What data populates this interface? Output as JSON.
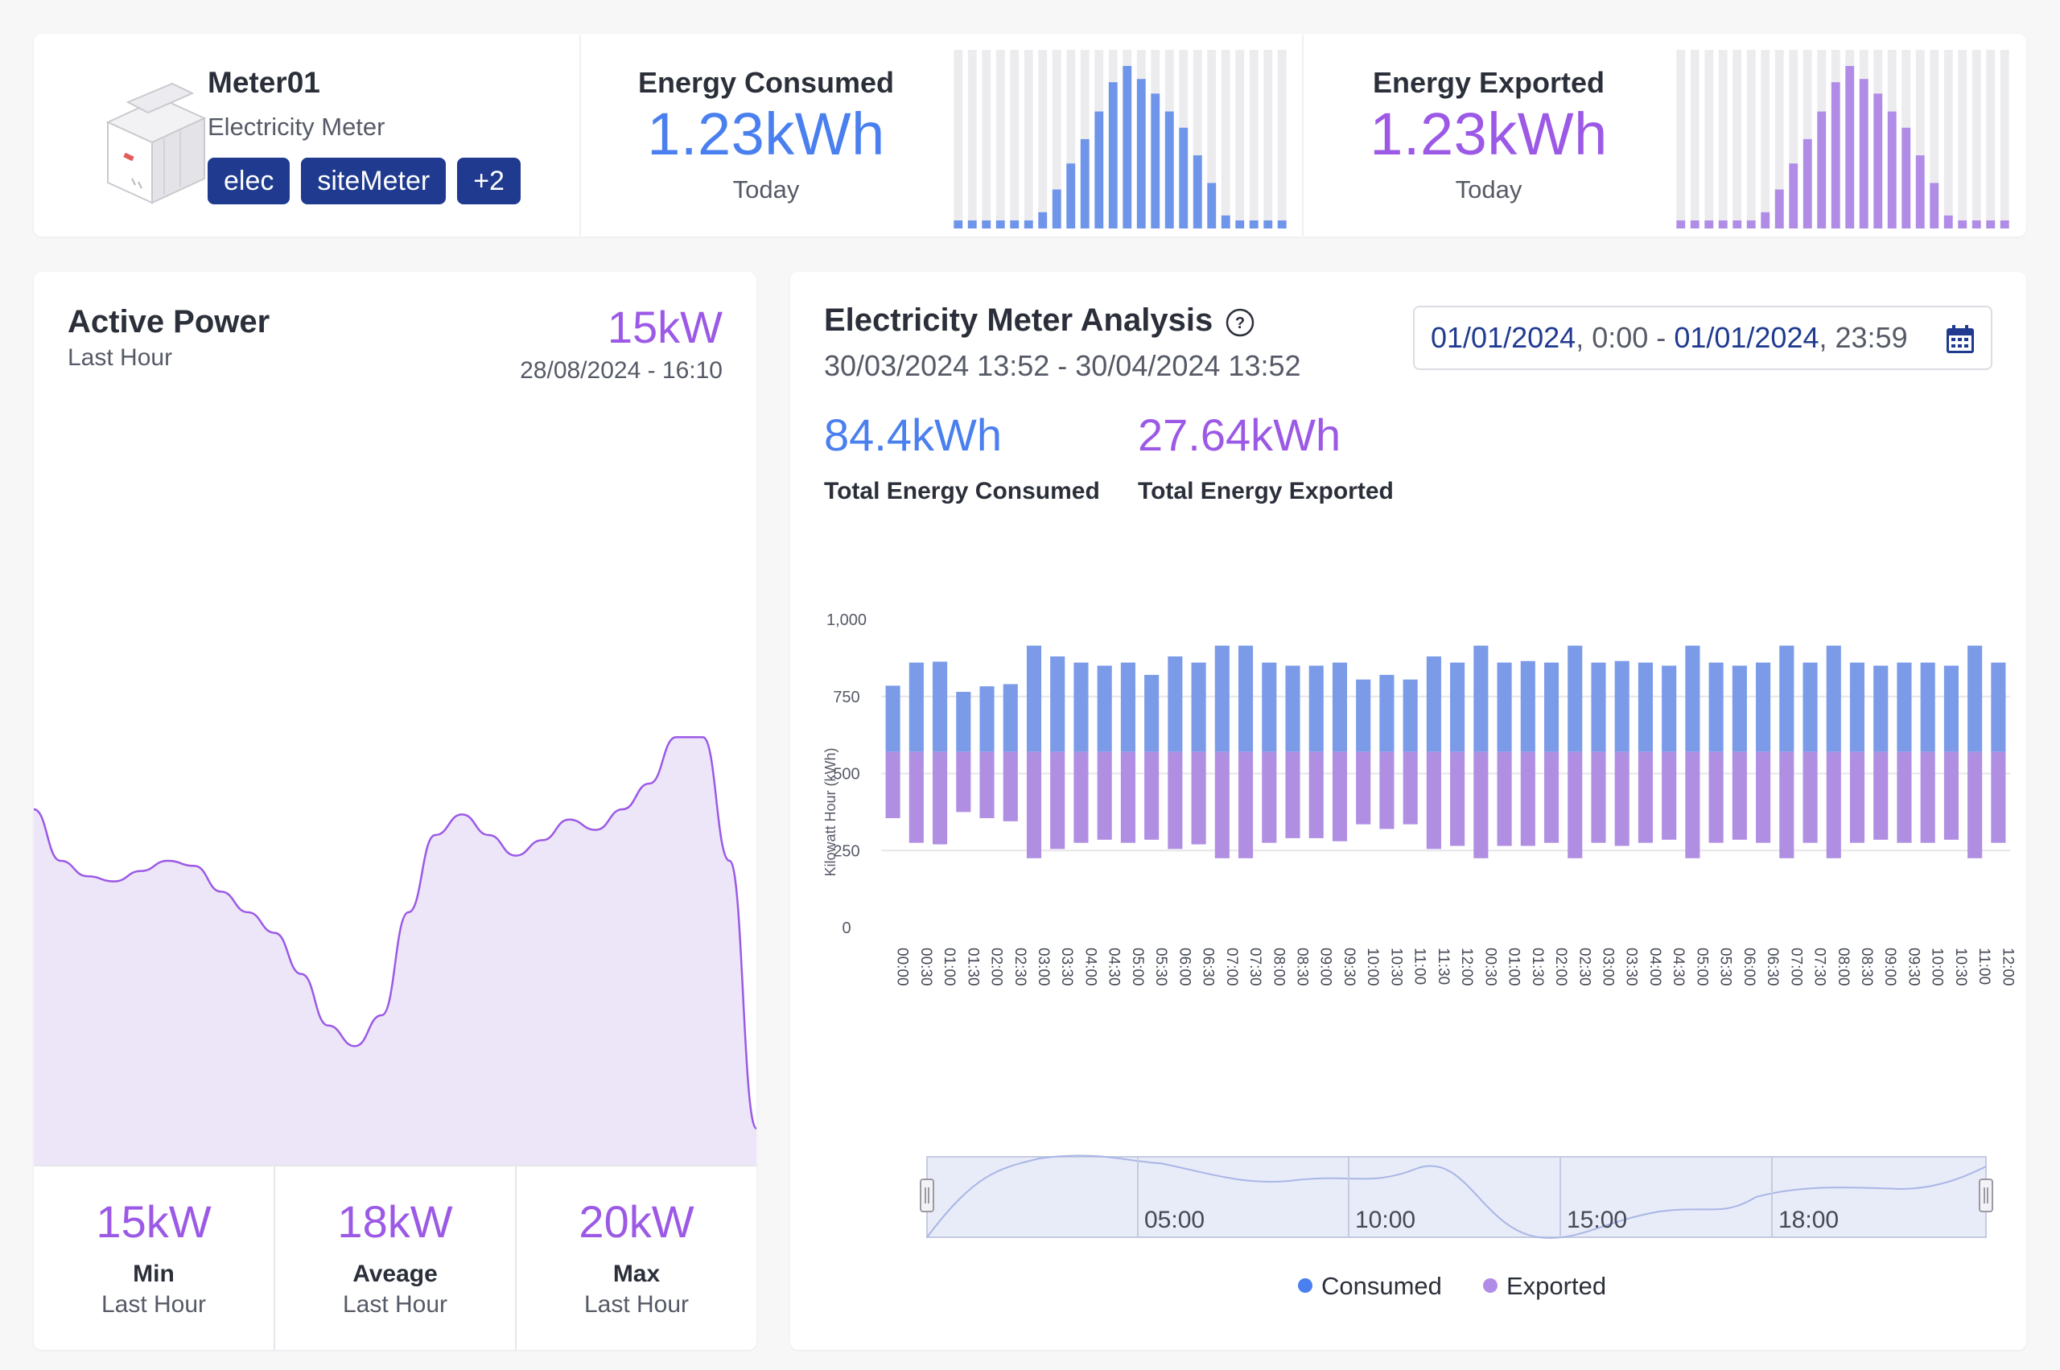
{
  "device": {
    "name": "Meter01",
    "type": "Electricity Meter",
    "tags": [
      "elec",
      "siteMeter",
      "+2"
    ]
  },
  "energy_consumed": {
    "title": "Energy Consumed",
    "value": "1.23kWh",
    "period": "Today",
    "color": "#4a7fef",
    "bar_color": "#6f95ea",
    "hourly": [
      0.02,
      0.02,
      0.02,
      0.02,
      0.02,
      0.02,
      0.1,
      0.24,
      0.4,
      0.55,
      0.72,
      0.9,
      1.0,
      0.92,
      0.83,
      0.72,
      0.62,
      0.45,
      0.28,
      0.08,
      0.02,
      0.02,
      0.02,
      0.02
    ]
  },
  "energy_exported": {
    "title": "Energy Exported",
    "value": "1.23kWh",
    "period": "Today",
    "color": "#9b59e6",
    "bar_color": "#b18ce6",
    "hourly": [
      0.02,
      0.02,
      0.02,
      0.02,
      0.02,
      0.02,
      0.1,
      0.24,
      0.4,
      0.55,
      0.72,
      0.9,
      1.0,
      0.92,
      0.83,
      0.72,
      0.62,
      0.45,
      0.28,
      0.08,
      0.02,
      0.02,
      0.02,
      0.02
    ]
  },
  "active_power": {
    "title": "Active Power",
    "subtitle": "Last Hour",
    "value": "15kW",
    "timestamp": "28/08/2024 - 16:10",
    "color": "#9b59e6",
    "fill_color": "#ede6f8",
    "series": [
      0.3,
      0.2,
      0.17,
      0.16,
      0.18,
      0.2,
      0.19,
      0.14,
      0.1,
      0.06,
      -0.02,
      -0.12,
      -0.16,
      -0.1,
      0.1,
      0.25,
      0.29,
      0.25,
      0.21,
      0.24,
      0.28,
      0.26,
      0.3,
      0.35,
      0.44,
      0.44,
      0.2,
      -0.32
    ],
    "stats": [
      {
        "value": "15kW",
        "label": "Min",
        "period": "Last Hour"
      },
      {
        "value": "18kW",
        "label": "Aveage",
        "period": "Last Hour"
      },
      {
        "value": "20kW",
        "label": "Max",
        "period": "Last Hour"
      }
    ]
  },
  "analysis": {
    "title": "Electricity Meter Analysis",
    "range": "30/03/2024 13:52 - 30/04/2024 13:52",
    "date_picker": {
      "start_date": "01/01/2024",
      "start_time": "0:00",
      "separator": "-",
      "end_date": "01/01/2024",
      "end_time": "23:59"
    },
    "totals": [
      {
        "value": "84.4kWh",
        "label": "Total Energy Consumed",
        "color": "#4a7fef"
      },
      {
        "value": "27.64kWh",
        "label": "Total Energy Exported",
        "color": "#9b59e6"
      }
    ],
    "navigator_labels": [
      "05:00",
      "10:00",
      "15:00",
      "18:00"
    ],
    "legend": [
      {
        "name": "Consumed",
        "color": "#4a7fef"
      },
      {
        "name": "Exported",
        "color": "#b18ce6"
      }
    ]
  },
  "chart_data": {
    "type": "bar",
    "ylabel": "Kilowatt Hour (kWh)",
    "ylim": [
      0,
      1000
    ],
    "yticks": [
      "0",
      "250",
      "500",
      "750",
      "1,000"
    ],
    "grid": true,
    "legend_position": "bottom-center",
    "baseline": 570,
    "categories": [
      "00:00",
      "00:30",
      "01:00",
      "01:30",
      "02:00",
      "02:30",
      "03:00",
      "03:30",
      "04:00",
      "04:30",
      "05:00",
      "05:30",
      "06:00",
      "06:30",
      "07:00",
      "07:30",
      "08:00",
      "08:30",
      "09:00",
      "09:30",
      "10:00",
      "10:30",
      "11:00",
      "11:30",
      "12:00",
      "00:30",
      "01:00",
      "01:30",
      "02:00",
      "02:30",
      "03:00",
      "03:30",
      "04:00",
      "04:30",
      "05:00",
      "05:30",
      "06:00",
      "06:30",
      "07:00",
      "07:30",
      "08:00",
      "08:30",
      "09:00",
      "09:30",
      "10:00",
      "10:30",
      "11:00",
      "12:00"
    ],
    "series": [
      {
        "name": "Consumed",
        "color": "#7b9be8",
        "values": [
          785,
          860,
          863,
          765,
          783,
          790,
          915,
          880,
          860,
          850,
          860,
          820,
          880,
          860,
          915,
          915,
          860,
          850,
          850,
          860,
          805,
          820,
          805,
          880,
          860,
          915,
          860,
          865,
          860,
          915,
          860,
          865,
          860,
          850,
          915,
          860,
          850,
          860,
          915,
          860,
          915,
          860,
          850,
          860,
          860,
          850,
          915,
          860
        ]
      },
      {
        "name": "Exported",
        "color": "#b08fe3",
        "values": [
          355,
          275,
          270,
          375,
          355,
          345,
          225,
          255,
          275,
          285,
          275,
          285,
          255,
          270,
          225,
          225,
          275,
          290,
          290,
          280,
          335,
          320,
          335,
          255,
          265,
          225,
          265,
          265,
          275,
          225,
          275,
          265,
          275,
          285,
          225,
          275,
          285,
          275,
          225,
          275,
          225,
          275,
          285,
          275,
          275,
          285,
          225,
          275
        ]
      }
    ]
  }
}
